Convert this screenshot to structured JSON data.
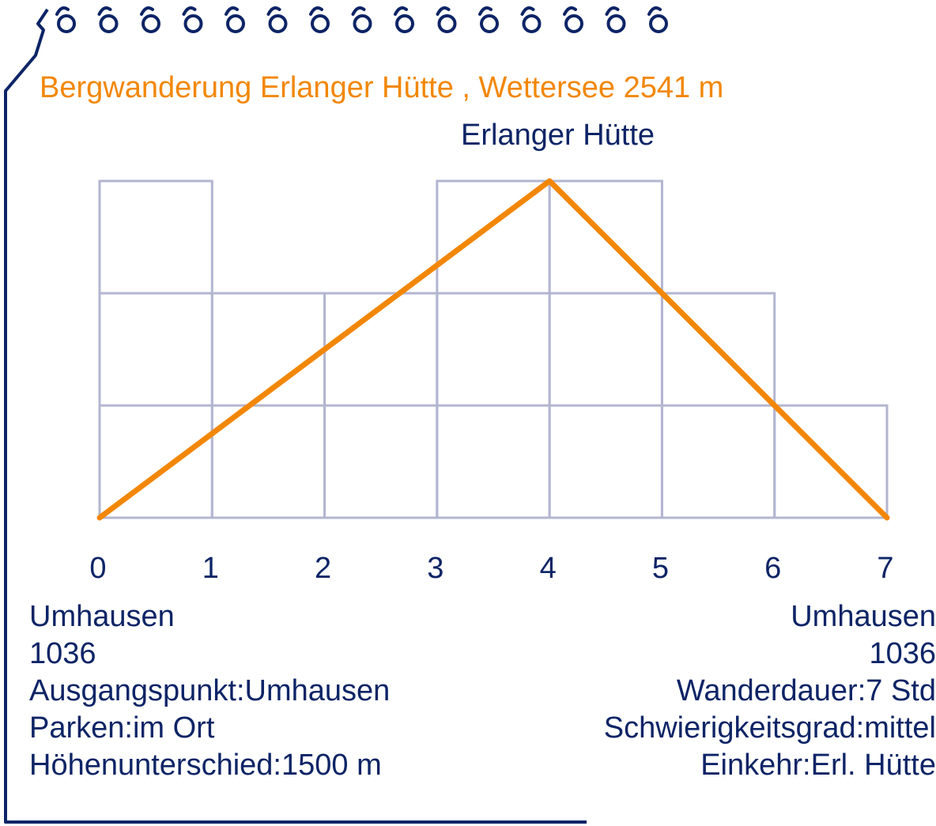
{
  "colors": {
    "frame": "#0d2466",
    "accent": "#f28705",
    "grid": "#b3b6d0",
    "text": "#0d2466"
  },
  "title": "Bergwanderung Erlanger Hütte , Wettersee 2541 m",
  "peak_label": "Erlanger Hütte",
  "start": {
    "place": "Umhausen",
    "altitude": "1036",
    "details": [
      "Ausgangspunkt:Umhausen",
      "Parken:im Ort",
      "Höhenunterschied:1500 m"
    ]
  },
  "end": {
    "place": "Umhausen",
    "altitude": "1036",
    "details": [
      "Wanderdauer:7 Std",
      "Schwierigkeitsgrad:mittel",
      "Einkehr:Erl. Hütte"
    ]
  },
  "chart_data": {
    "type": "line",
    "title": "Bergwanderung Erlanger Hütte , Wettersee 2541 m",
    "xlabel": "",
    "ylabel": "",
    "x": [
      0,
      1,
      2,
      3,
      4,
      5,
      6,
      7
    ],
    "tick_labels": [
      "0",
      "1",
      "2",
      "3",
      "4",
      "5",
      "6",
      "7"
    ],
    "xlim": [
      0,
      7
    ],
    "ylim": [
      0,
      3
    ],
    "grid_levels": [
      3,
      2,
      2,
      3,
      3,
      2,
      1
    ],
    "series": [
      {
        "x": [
          0,
          4,
          7
        ],
        "y": [
          0,
          3,
          0
        ]
      }
    ],
    "annotations": [
      {
        "x": 4,
        "text": "Erlanger Hütte"
      }
    ],
    "grid": true
  }
}
